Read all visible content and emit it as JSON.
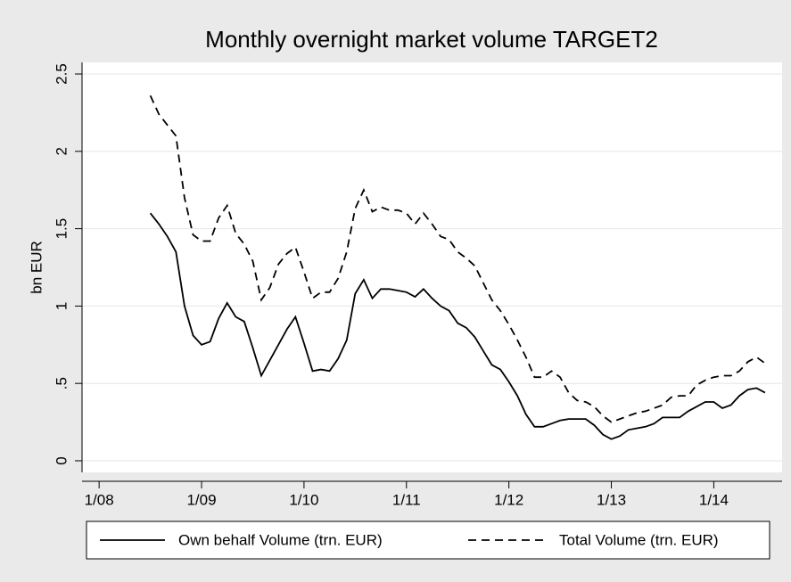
{
  "chart_data": {
    "type": "line",
    "title": "Monthly overnight market volume TARGET2",
    "y_label": "bn EUR",
    "x": [
      "7/08",
      "8/08",
      "9/08",
      "10/08",
      "11/08",
      "12/08",
      "1/09",
      "2/09",
      "3/09",
      "4/09",
      "5/09",
      "6/09",
      "7/09",
      "8/09",
      "9/09",
      "10/09",
      "11/09",
      "12/09",
      "1/10",
      "2/10",
      "3/10",
      "4/10",
      "5/10",
      "6/10",
      "7/10",
      "8/10",
      "9/10",
      "10/10",
      "11/10",
      "12/10",
      "1/11",
      "2/11",
      "3/11",
      "4/11",
      "5/11",
      "6/11",
      "7/11",
      "8/11",
      "9/11",
      "10/11",
      "11/11",
      "12/11",
      "1/12",
      "2/12",
      "3/12",
      "4/12",
      "5/12",
      "6/12",
      "7/12",
      "8/12",
      "9/12",
      "10/12",
      "11/12",
      "12/12",
      "1/13",
      "2/13",
      "3/13",
      "4/13",
      "5/13",
      "6/13",
      "7/13",
      "8/13",
      "9/13",
      "10/13",
      "11/13",
      "12/13",
      "1/14",
      "2/14",
      "3/14",
      "4/14",
      "5/14",
      "6/14",
      "7/14"
    ],
    "series": [
      {
        "name": "Own behalf Volume (trn. EUR)",
        "color": "#000000",
        "dash": "solid",
        "values": [
          1.6,
          1.53,
          1.45,
          1.35,
          1.0,
          0.81,
          0.75,
          0.77,
          0.92,
          1.02,
          0.93,
          0.9,
          0.73,
          0.55,
          0.65,
          0.75,
          0.85,
          0.93,
          0.76,
          0.58,
          0.59,
          0.58,
          0.66,
          0.78,
          1.08,
          1.17,
          1.05,
          1.11,
          1.11,
          1.1,
          1.09,
          1.06,
          1.11,
          1.05,
          1.0,
          0.97,
          0.89,
          0.86,
          0.8,
          0.71,
          0.62,
          0.59,
          0.51,
          0.42,
          0.3,
          0.22,
          0.22,
          0.24,
          0.26,
          0.27,
          0.27,
          0.27,
          0.23,
          0.17,
          0.14,
          0.16,
          0.2,
          0.21,
          0.22,
          0.24,
          0.28,
          0.28,
          0.28,
          0.32,
          0.35,
          0.38,
          0.38,
          0.34,
          0.36,
          0.42,
          0.46,
          0.47,
          0.44
        ]
      },
      {
        "name": "Total Volume (trn. EUR)",
        "color": "#000000",
        "dash": "dashed",
        "values": [
          2.36,
          2.24,
          2.17,
          2.1,
          1.7,
          1.46,
          1.42,
          1.42,
          1.57,
          1.65,
          1.47,
          1.4,
          1.29,
          1.04,
          1.12,
          1.27,
          1.34,
          1.38,
          1.22,
          1.05,
          1.09,
          1.09,
          1.18,
          1.35,
          1.63,
          1.75,
          1.61,
          1.64,
          1.62,
          1.62,
          1.6,
          1.53,
          1.6,
          1.53,
          1.45,
          1.43,
          1.35,
          1.31,
          1.26,
          1.15,
          1.04,
          0.97,
          0.88,
          0.78,
          0.67,
          0.54,
          0.54,
          0.58,
          0.54,
          0.44,
          0.39,
          0.38,
          0.35,
          0.29,
          0.25,
          0.27,
          0.29,
          0.31,
          0.32,
          0.34,
          0.36,
          0.41,
          0.42,
          0.42,
          0.49,
          0.52,
          0.54,
          0.55,
          0.55,
          0.58,
          0.64,
          0.67,
          0.63
        ]
      }
    ],
    "xlim": [
      "11/07",
      "9/14"
    ],
    "xticks": [
      "1/08",
      "1/09",
      "1/10",
      "1/11",
      "1/12",
      "1/13",
      "1/14"
    ],
    "ylim": [
      -0.075,
      2.575
    ],
    "yticks": [
      0,
      {
        "value": 0.5,
        "label": ".5"
      },
      1,
      1.5,
      2,
      2.5
    ],
    "grid": true,
    "legend": "bottom"
  }
}
